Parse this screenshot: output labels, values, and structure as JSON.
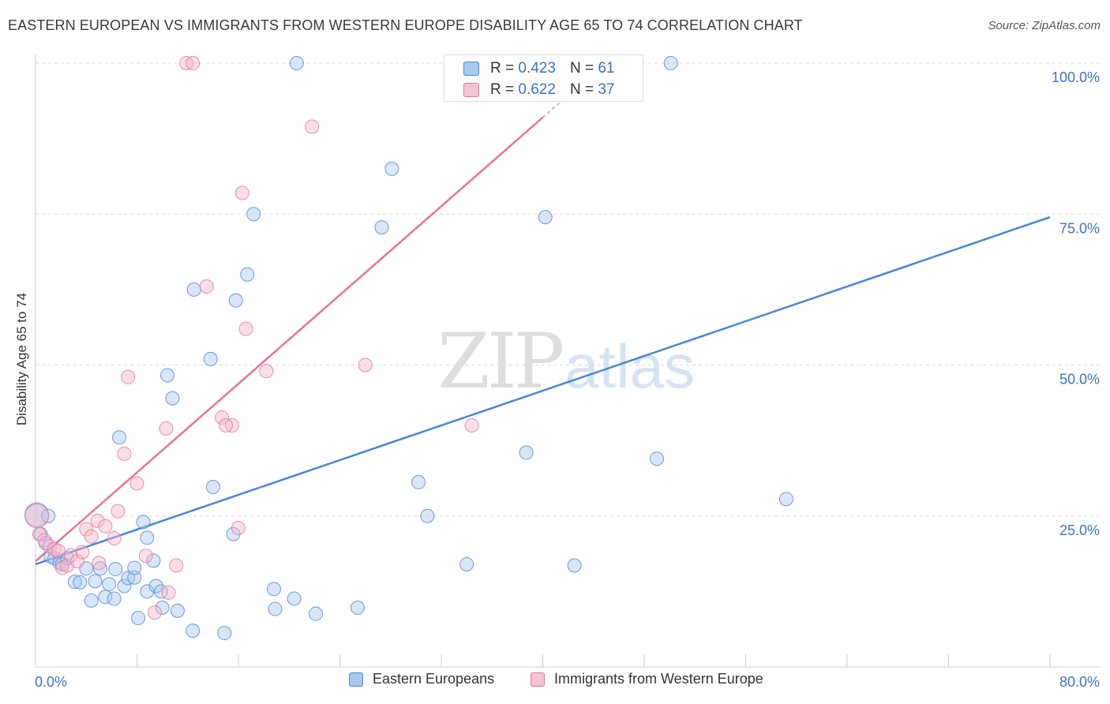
{
  "header": {
    "title": "EASTERN EUROPEAN VS IMMIGRANTS FROM WESTERN EUROPE DISABILITY AGE 65 TO 74 CORRELATION CHART",
    "source": "Source: ZipAtlas.com"
  },
  "watermark": {
    "zip": "ZIP",
    "atlas": "atlas"
  },
  "stats": {
    "rows": [
      {
        "r_label": "R = ",
        "r_value": "0.423",
        "n_label": "N = ",
        "n_value": "61"
      },
      {
        "r_label": "R = ",
        "r_value": "0.622",
        "n_label": "N = ",
        "n_value": "37"
      }
    ]
  },
  "chart_data": {
    "type": "scatter",
    "title": "EASTERN EUROPEAN VS IMMIGRANTS FROM WESTERN EUROPE DISABILITY AGE 65 TO 74 CORRELATION CHART",
    "xlabel": "",
    "ylabel": "Disability Age 65 to 74",
    "xlim": [
      0,
      80
    ],
    "ylim": [
      0,
      100
    ],
    "x_tick_labels": [
      "0.0%",
      "80.0%"
    ],
    "y_tick_values": [
      25,
      50,
      75,
      100
    ],
    "y_tick_labels": [
      "25.0%",
      "50.0%",
      "75.0%",
      "100.0%"
    ],
    "grid": true,
    "legend_position": "bottom",
    "series": [
      {
        "name": "Eastern Europeans",
        "color": "#4a86d8",
        "fill": "#a9c8ef",
        "r": 0.423,
        "n": 61,
        "trend": {
          "x": [
            0,
            80
          ],
          "y": [
            17.0,
            74.5
          ]
        },
        "points": [
          [
            0.1,
            25.2
          ],
          [
            0.4,
            22.0
          ],
          [
            0.8,
            20.5
          ],
          [
            1.2,
            18.3
          ],
          [
            1.5,
            18.0
          ],
          [
            1.9,
            17.2
          ],
          [
            2.1,
            17.0
          ],
          [
            2.5,
            18.0
          ],
          [
            3.1,
            14.1
          ],
          [
            3.5,
            14.0
          ],
          [
            4.0,
            16.3
          ],
          [
            4.4,
            11.0
          ],
          [
            4.7,
            14.2
          ],
          [
            5.1,
            16.3
          ],
          [
            5.5,
            11.6
          ],
          [
            5.8,
            13.7
          ],
          [
            6.2,
            11.3
          ],
          [
            6.3,
            16.2
          ],
          [
            6.6,
            38.0
          ],
          [
            7.0,
            13.4
          ],
          [
            7.3,
            14.7
          ],
          [
            7.8,
            14.8
          ],
          [
            7.8,
            16.4
          ],
          [
            8.1,
            8.1
          ],
          [
            8.8,
            21.4
          ],
          [
            8.8,
            12.5
          ],
          [
            9.3,
            17.6
          ],
          [
            9.5,
            13.4
          ],
          [
            9.9,
            12.5
          ],
          [
            10.0,
            9.8
          ],
          [
            10.4,
            48.3
          ],
          [
            10.8,
            44.5
          ],
          [
            11.2,
            9.3
          ],
          [
            12.4,
            6.0
          ],
          [
            12.5,
            62.5
          ],
          [
            13.8,
            51.0
          ],
          [
            14.0,
            29.8
          ],
          [
            14.9,
            5.6
          ],
          [
            15.6,
            22.0
          ],
          [
            15.8,
            60.7
          ],
          [
            16.7,
            65.0
          ],
          [
            17.2,
            75.0
          ],
          [
            18.8,
            12.9
          ],
          [
            18.9,
            9.6
          ],
          [
            20.6,
            100.0
          ],
          [
            20.4,
            11.3
          ],
          [
            22.1,
            8.8
          ],
          [
            25.4,
            9.8
          ],
          [
            27.3,
            72.8
          ],
          [
            28.1,
            82.5
          ],
          [
            30.2,
            30.6
          ],
          [
            30.9,
            25.0
          ],
          [
            34.0,
            17.0
          ],
          [
            38.7,
            35.5
          ],
          [
            40.2,
            74.5
          ],
          [
            42.5,
            16.8
          ],
          [
            49.0,
            34.5
          ],
          [
            50.1,
            100.0
          ],
          [
            59.2,
            27.8
          ],
          [
            1.0,
            25.0
          ],
          [
            8.5,
            24.0
          ]
        ]
      },
      {
        "name": "Immigrants from Western Europe",
        "color": "#e8739b",
        "fill": "#f6b9cc",
        "r": 0.622,
        "n": 37,
        "trend": {
          "x": [
            0,
            40
          ],
          "y": [
            17.5,
            91.0
          ]
        },
        "points": [
          [
            0.1,
            25.0
          ],
          [
            0.3,
            22.0
          ],
          [
            0.7,
            21.0
          ],
          [
            1.1,
            20.0
          ],
          [
            1.5,
            19.5
          ],
          [
            1.8,
            19.2
          ],
          [
            2.1,
            16.4
          ],
          [
            2.5,
            16.8
          ],
          [
            2.8,
            18.5
          ],
          [
            3.3,
            17.5
          ],
          [
            3.7,
            19.0
          ],
          [
            4.0,
            22.8
          ],
          [
            4.4,
            21.6
          ],
          [
            4.9,
            24.2
          ],
          [
            5.0,
            17.2
          ],
          [
            5.5,
            23.3
          ],
          [
            6.2,
            21.3
          ],
          [
            6.5,
            25.8
          ],
          [
            7.0,
            35.3
          ],
          [
            7.3,
            48.0
          ],
          [
            8.0,
            30.4
          ],
          [
            8.7,
            18.4
          ],
          [
            9.4,
            9.0
          ],
          [
            10.3,
            39.5
          ],
          [
            10.5,
            12.3
          ],
          [
            11.1,
            16.8
          ],
          [
            11.9,
            100.0
          ],
          [
            12.4,
            100.0
          ],
          [
            13.5,
            63.0
          ],
          [
            14.7,
            41.3
          ],
          [
            15.5,
            40.0
          ],
          [
            16.0,
            23.0
          ],
          [
            16.3,
            78.5
          ],
          [
            16.6,
            56.0
          ],
          [
            18.2,
            49.0
          ],
          [
            21.8,
            89.5
          ],
          [
            26.0,
            50.0
          ]
        ],
        "extra_points": [
          [
            34.4,
            40.0
          ],
          [
            15.0,
            40.0
          ]
        ]
      }
    ]
  }
}
